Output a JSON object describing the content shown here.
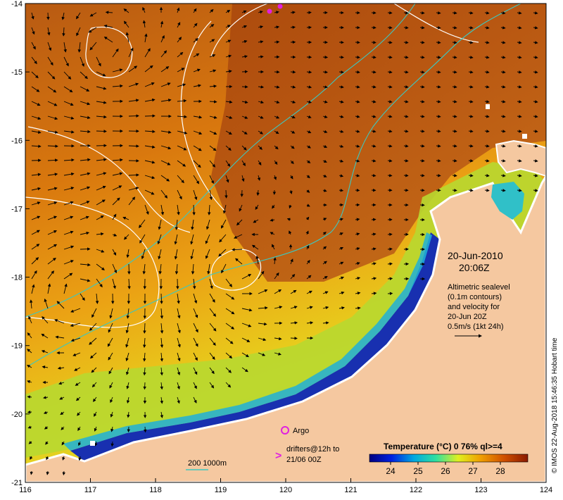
{
  "map": {
    "type": "sea-surface-temperature-map",
    "lon_range": [
      116,
      124
    ],
    "lat_range": [
      -21,
      -14
    ],
    "lon_ticks": [
      "116",
      "117",
      "118",
      "119",
      "120",
      "121",
      "122",
      "123",
      "124"
    ],
    "lat_ticks": [
      "-14",
      "-15",
      "-16",
      "-17",
      "-18",
      "-19",
      "-20",
      "-21"
    ],
    "colors": {
      "ocean_warm": "#b34d10",
      "ocean_mid": "#e88a10",
      "ocean_cool": "#e8d020",
      "ocean_cold": "#1a2aa0",
      "land": "#f5c8a0",
      "contour": "#ffffff",
      "isobath": "#3cc8c0",
      "argo": "#e020e0"
    }
  },
  "annotation": {
    "date": "20-Jun-2010",
    "time": "20:06Z",
    "desc_line1": "Altimetric sealevel",
    "desc_line2": "(0.1m contours)",
    "desc_line3": "and velocity for",
    "desc_line4": "20-Jun 20Z",
    "scale_label": "0.5m/s (1kt 24h)"
  },
  "legend": {
    "argo_label": "Argo",
    "drifters_line1": "drifters@12h to",
    "drifters_line2": "21/06 00Z",
    "isobath_label": "200  1000m"
  },
  "colorbar": {
    "title": "Temperature (°C) 0 76% ql>=4",
    "tick_labels": [
      "24",
      "25",
      "26",
      "27",
      "28"
    ],
    "stops": [
      "#000080",
      "#0020e0",
      "#00a8e0",
      "#30e0a0",
      "#e0f020",
      "#f0a000",
      "#d05000",
      "#8a1a00"
    ]
  },
  "credit": "© IMOS 22-Aug-2018 15:46:35 Hobart time"
}
